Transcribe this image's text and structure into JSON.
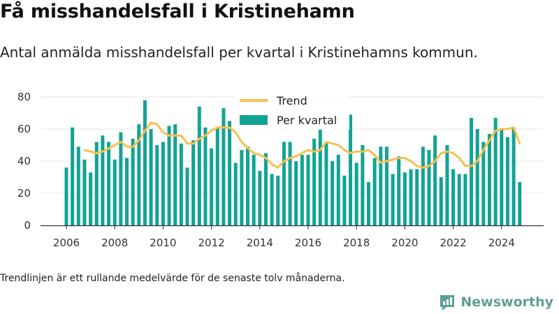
{
  "header": {
    "title": "Få misshandelsfall i Kristinehamn",
    "subtitle": "Antal anmälda misshandelsfall per kvartal i Kristinehamns kommun."
  },
  "footer": {
    "note": "Trendlinjen är ett rullande medelvärde för de senaste tolv månaderna.",
    "brand": "Newsworthy"
  },
  "colors": {
    "bars": "#12a394",
    "trend": "#f7c051",
    "grid": "#e4e4e4",
    "brand": "#5f9f93"
  },
  "chart_data": {
    "type": "bar",
    "x": [
      "2006-Q1",
      "2006-Q2",
      "2006-Q3",
      "2006-Q4",
      "2007-Q1",
      "2007-Q2",
      "2007-Q3",
      "2007-Q4",
      "2008-Q1",
      "2008-Q2",
      "2008-Q3",
      "2008-Q4",
      "2009-Q1",
      "2009-Q2",
      "2009-Q3",
      "2009-Q4",
      "2010-Q1",
      "2010-Q2",
      "2010-Q3",
      "2010-Q4",
      "2011-Q1",
      "2011-Q2",
      "2011-Q3",
      "2011-Q4",
      "2012-Q1",
      "2012-Q2",
      "2012-Q3",
      "2012-Q4",
      "2013-Q1",
      "2013-Q2",
      "2013-Q3",
      "2013-Q4",
      "2014-Q1",
      "2014-Q2",
      "2014-Q3",
      "2014-Q4",
      "2015-Q1",
      "2015-Q2",
      "2015-Q3",
      "2015-Q4",
      "2016-Q1",
      "2016-Q2",
      "2016-Q3",
      "2016-Q4",
      "2017-Q1",
      "2017-Q2",
      "2017-Q3",
      "2017-Q4",
      "2018-Q1",
      "2018-Q2",
      "2018-Q3",
      "2018-Q4",
      "2019-Q1",
      "2019-Q2",
      "2019-Q3",
      "2019-Q4",
      "2020-Q1",
      "2020-Q2",
      "2020-Q3",
      "2020-Q4",
      "2021-Q1",
      "2021-Q2",
      "2021-Q3",
      "2021-Q4",
      "2022-Q1",
      "2022-Q2",
      "2022-Q3",
      "2022-Q4",
      "2023-Q1",
      "2023-Q2",
      "2023-Q3",
      "2023-Q4",
      "2024-Q1",
      "2024-Q2",
      "2024-Q3",
      "2024-Q4"
    ],
    "series": [
      {
        "name": "Per kvartal",
        "values": [
          36,
          61,
          49,
          41,
          33,
          52,
          56,
          52,
          41,
          58,
          42,
          54,
          63,
          78,
          60,
          50,
          52,
          62,
          63,
          51,
          36,
          53,
          74,
          61,
          48,
          61,
          73,
          65,
          39,
          47,
          49,
          44,
          34,
          45,
          32,
          31,
          52,
          52,
          40,
          44,
          44,
          54,
          60,
          52,
          40,
          44,
          31,
          69,
          39,
          50,
          27,
          42,
          49,
          49,
          32,
          43,
          33,
          35,
          35,
          49,
          47,
          56,
          30,
          50,
          35,
          32,
          32,
          67,
          60,
          52,
          57,
          67,
          60,
          55,
          61,
          27
        ]
      },
      {
        "name": "Trend",
        "values": [
          null,
          null,
          null,
          47,
          46,
          45,
          46,
          48,
          50,
          52,
          49,
          49,
          53,
          59,
          64,
          63,
          58,
          56,
          56,
          56,
          51,
          51,
          54,
          56,
          59,
          61,
          61,
          61,
          58,
          52,
          48,
          45,
          44,
          42,
          38,
          36,
          40,
          42,
          43,
          45,
          47,
          46,
          47,
          52,
          51,
          50,
          47,
          45,
          46,
          46,
          47,
          44,
          39,
          40,
          41,
          42,
          42,
          40,
          37,
          36,
          37,
          40,
          45,
          46,
          45,
          42,
          37,
          37,
          40,
          47,
          53,
          59,
          60,
          60,
          61,
          51
        ]
      }
    ],
    "ylim": [
      0,
      80
    ],
    "yticks": [
      0,
      20,
      40,
      60,
      80
    ],
    "xticks": [
      "2006",
      "2008",
      "2010",
      "2012",
      "2014",
      "2016",
      "2018",
      "2020",
      "2022",
      "2024"
    ],
    "legend": {
      "position": "top-center",
      "entries": [
        "Trend",
        "Per kvartal"
      ]
    },
    "grid": true
  }
}
